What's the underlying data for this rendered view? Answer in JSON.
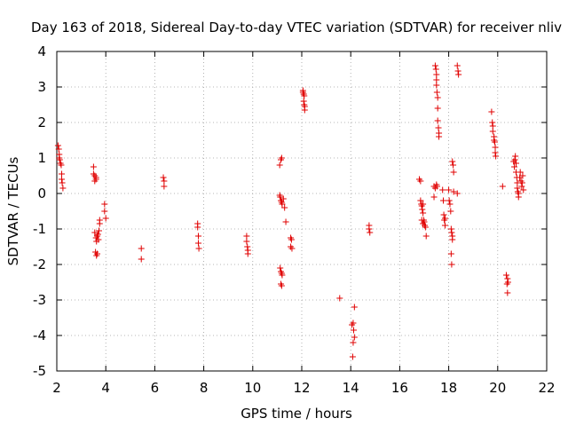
{
  "chart_data": {
    "type": "scatter",
    "title": "Day 163 of 2018, Sidereal Day-to-day VTEC variation (SDTVAR) for receiver nliv",
    "xlabel": "GPS time / hours",
    "ylabel": "SDTVAR / TECUs",
    "xlim": [
      2,
      22
    ],
    "ylim": [
      -5,
      4
    ],
    "xticks": [
      2,
      4,
      6,
      8,
      10,
      12,
      14,
      16,
      18,
      20,
      22
    ],
    "yticks": [
      -5,
      -4,
      -3,
      -2,
      -1,
      0,
      1,
      2,
      3,
      4
    ],
    "xtick_labels": [
      "2",
      "4",
      "6",
      "8",
      "10",
      "12",
      "14",
      "16",
      "18",
      "20",
      "22"
    ],
    "ytick_labels": [
      "-5",
      "-4",
      "-3",
      "-2",
      "-1",
      "0",
      "1",
      "2",
      "3",
      "4"
    ],
    "grid": true,
    "marker": "plus",
    "color": "#e00000",
    "series": [
      {
        "name": "SDTVAR",
        "points": [
          [
            2.05,
            1.35
          ],
          [
            2.08,
            1.25
          ],
          [
            2.1,
            1.1
          ],
          [
            2.1,
            1.0
          ],
          [
            2.12,
            0.95
          ],
          [
            2.15,
            0.85
          ],
          [
            2.18,
            0.8
          ],
          [
            2.2,
            0.55
          ],
          [
            2.2,
            0.4
          ],
          [
            2.22,
            0.3
          ],
          [
            2.25,
            0.15
          ],
          [
            3.5,
            0.75
          ],
          [
            3.5,
            0.55
          ],
          [
            3.55,
            0.5
          ],
          [
            3.55,
            0.35
          ],
          [
            3.6,
            0.4
          ],
          [
            3.6,
            0.45
          ],
          [
            3.55,
            -1.1
          ],
          [
            3.6,
            -1.25
          ],
          [
            3.62,
            -1.35
          ],
          [
            3.65,
            -1.2
          ],
          [
            3.68,
            -1.15
          ],
          [
            3.7,
            -1.3
          ],
          [
            3.72,
            -1.05
          ],
          [
            3.75,
            -0.85
          ],
          [
            3.75,
            -0.75
          ],
          [
            3.58,
            -1.65
          ],
          [
            3.62,
            -1.75
          ],
          [
            3.65,
            -1.7
          ],
          [
            3.95,
            -0.3
          ],
          [
            3.95,
            -0.5
          ],
          [
            4.0,
            -0.7
          ],
          [
            5.45,
            -1.55
          ],
          [
            5.45,
            -1.85
          ],
          [
            6.35,
            0.45
          ],
          [
            6.38,
            0.35
          ],
          [
            6.38,
            0.2
          ],
          [
            7.75,
            -0.85
          ],
          [
            7.75,
            -0.95
          ],
          [
            7.78,
            -1.2
          ],
          [
            7.78,
            -1.4
          ],
          [
            7.8,
            -1.55
          ],
          [
            9.75,
            -1.2
          ],
          [
            9.75,
            -1.35
          ],
          [
            9.78,
            -1.5
          ],
          [
            9.8,
            -1.6
          ],
          [
            9.8,
            -1.7
          ],
          [
            11.1,
            0.8
          ],
          [
            11.15,
            0.95
          ],
          [
            11.18,
            1.0
          ],
          [
            11.1,
            -0.05
          ],
          [
            11.12,
            -0.1
          ],
          [
            11.15,
            -0.2
          ],
          [
            11.18,
            -0.25
          ],
          [
            11.2,
            -0.3
          ],
          [
            11.25,
            -0.15
          ],
          [
            11.3,
            -0.4
          ],
          [
            11.35,
            -0.8
          ],
          [
            11.55,
            -1.25
          ],
          [
            11.58,
            -1.3
          ],
          [
            11.55,
            -1.5
          ],
          [
            11.6,
            -1.55
          ],
          [
            11.12,
            -2.1
          ],
          [
            11.15,
            -2.2
          ],
          [
            11.18,
            -2.25
          ],
          [
            11.2,
            -2.3
          ],
          [
            11.15,
            -2.55
          ],
          [
            11.18,
            -2.6
          ],
          [
            12.05,
            2.9
          ],
          [
            12.05,
            2.85
          ],
          [
            12.08,
            2.8
          ],
          [
            12.1,
            2.75
          ],
          [
            12.08,
            2.6
          ],
          [
            12.1,
            2.5
          ],
          [
            12.12,
            2.45
          ],
          [
            12.12,
            2.35
          ],
          [
            13.55,
            -2.95
          ],
          [
            14.05,
            -3.7
          ],
          [
            14.1,
            -3.65
          ],
          [
            14.12,
            -3.85
          ],
          [
            14.15,
            -4.05
          ],
          [
            14.1,
            -4.2
          ],
          [
            14.15,
            -3.2
          ],
          [
            14.08,
            -4.6
          ],
          [
            14.75,
            -0.9
          ],
          [
            14.75,
            -1.0
          ],
          [
            14.78,
            -1.1
          ],
          [
            16.8,
            0.4
          ],
          [
            16.85,
            0.35
          ],
          [
            16.85,
            -0.2
          ],
          [
            16.88,
            -0.3
          ],
          [
            16.9,
            -0.35
          ],
          [
            16.92,
            -0.45
          ],
          [
            16.95,
            -0.3
          ],
          [
            16.95,
            -0.55
          ],
          [
            16.98,
            -0.75
          ],
          [
            17.0,
            -0.8
          ],
          [
            17.02,
            -0.9
          ],
          [
            17.05,
            -0.95
          ],
          [
            17.08,
            -1.2
          ],
          [
            16.9,
            -0.75
          ],
          [
            16.95,
            -0.85
          ],
          [
            17.4,
            0.2
          ],
          [
            17.45,
            0.15
          ],
          [
            17.5,
            0.25
          ],
          [
            17.52,
            0.2
          ],
          [
            17.4,
            -0.1
          ],
          [
            17.45,
            3.6
          ],
          [
            17.48,
            3.5
          ],
          [
            17.5,
            3.35
          ],
          [
            17.5,
            3.2
          ],
          [
            17.5,
            3.05
          ],
          [
            17.52,
            2.85
          ],
          [
            17.55,
            2.7
          ],
          [
            17.55,
            2.4
          ],
          [
            17.55,
            2.05
          ],
          [
            17.58,
            1.85
          ],
          [
            17.6,
            1.7
          ],
          [
            17.6,
            1.6
          ],
          [
            17.75,
            0.1
          ],
          [
            17.78,
            -0.2
          ],
          [
            17.8,
            -0.6
          ],
          [
            17.82,
            -0.75
          ],
          [
            17.85,
            -0.7
          ],
          [
            17.85,
            -0.9
          ],
          [
            18.0,
            0.1
          ],
          [
            18.02,
            -0.2
          ],
          [
            18.05,
            -0.3
          ],
          [
            18.08,
            -0.5
          ],
          [
            18.1,
            -1.0
          ],
          [
            18.12,
            -1.1
          ],
          [
            18.15,
            -1.2
          ],
          [
            18.15,
            -1.3
          ],
          [
            18.1,
            -1.7
          ],
          [
            18.12,
            -2.0
          ],
          [
            18.15,
            0.9
          ],
          [
            18.18,
            0.8
          ],
          [
            18.2,
            0.6
          ],
          [
            18.2,
            0.05
          ],
          [
            18.35,
            0.0
          ],
          [
            18.35,
            3.6
          ],
          [
            18.38,
            3.45
          ],
          [
            18.4,
            3.35
          ],
          [
            19.75,
            2.3
          ],
          [
            19.78,
            2.0
          ],
          [
            19.8,
            1.9
          ],
          [
            19.8,
            1.75
          ],
          [
            19.85,
            1.6
          ],
          [
            19.85,
            1.5
          ],
          [
            19.88,
            1.45
          ],
          [
            19.9,
            1.3
          ],
          [
            19.9,
            1.15
          ],
          [
            19.92,
            1.05
          ],
          [
            20.2,
            0.2
          ],
          [
            20.35,
            -2.3
          ],
          [
            20.4,
            -2.4
          ],
          [
            20.42,
            -2.5
          ],
          [
            20.38,
            -2.55
          ],
          [
            20.4,
            -2.8
          ],
          [
            20.65,
            0.9
          ],
          [
            20.68,
            0.75
          ],
          [
            20.7,
            0.95
          ],
          [
            20.72,
            1.05
          ],
          [
            20.75,
            0.85
          ],
          [
            20.75,
            0.6
          ],
          [
            20.78,
            0.45
          ],
          [
            20.8,
            0.3
          ],
          [
            20.8,
            0.15
          ],
          [
            20.82,
            0.05
          ],
          [
            20.85,
            0.0
          ],
          [
            20.85,
            -0.1
          ],
          [
            20.9,
            0.45
          ],
          [
            20.92,
            0.6
          ],
          [
            20.95,
            0.35
          ],
          [
            20.98,
            0.2
          ],
          [
            21.0,
            0.3
          ],
          [
            21.02,
            0.5
          ],
          [
            21.05,
            0.1
          ]
        ]
      }
    ]
  }
}
